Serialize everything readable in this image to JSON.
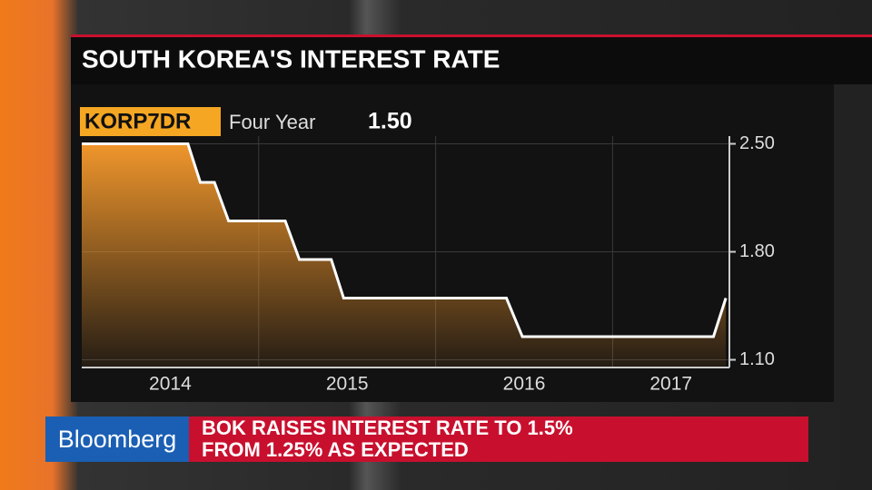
{
  "chart_data": {
    "type": "line",
    "title": "SOUTH KOREA'S INTEREST RATE",
    "ticker": "KORP7DR",
    "ticker_desc": "Four Year",
    "last_value": "1.50",
    "x": [
      2014,
      2014.6,
      2014.67,
      2014.75,
      2014.83,
      2015.15,
      2015.23,
      2015.41,
      2015.48,
      2016.4,
      2016.49,
      2017.57,
      2017.64
    ],
    "series": [
      {
        "color": "#ffffff",
        "values": [
          2.5,
          2.5,
          2.25,
          2.25,
          2.0,
          2.0,
          1.75,
          1.75,
          1.5,
          1.5,
          1.25,
          1.25,
          1.5
        ]
      }
    ],
    "area_color": "#f0962c",
    "xlim": [
      2014,
      2017.66
    ],
    "xticks": [
      {
        "value": 2014.5,
        "label": "2014"
      },
      {
        "value": 2015.5,
        "label": "2015"
      },
      {
        "value": 2016.5,
        "label": "2016"
      },
      {
        "value": 2017.33,
        "label": "2017"
      }
    ],
    "xgrid": [
      2015,
      2016,
      2017
    ],
    "ylim": [
      1.05,
      2.55
    ],
    "yticks": [
      {
        "value": 2.5,
        "label": "2.50"
      },
      {
        "value": 1.8,
        "label": "1.80"
      },
      {
        "value": 1.1,
        "label": "1.10"
      }
    ],
    "grid": true
  },
  "lower_third": {
    "brand": "Bloomberg",
    "headline": [
      "BOK RAISES INTEREST RATE TO 1.5%",
      "FROM 1.25% AS EXPECTED"
    ]
  }
}
